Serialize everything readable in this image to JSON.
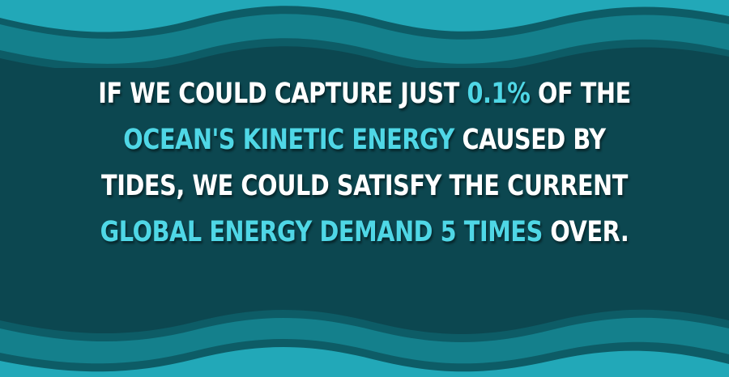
{
  "colors": {
    "background": "#0c4750",
    "wave_dark": "#0d5c66",
    "wave_mid": "#14808c",
    "wave_light": "#22a8b8",
    "text": "#ffffff",
    "highlight": "#4fd7e6"
  },
  "headline": {
    "segments": [
      {
        "text": "If we could capture just ",
        "highlight": false
      },
      {
        "text": "0.1%",
        "highlight": true
      },
      {
        "text": " of the ",
        "highlight": false
      },
      {
        "text": "ocean's kinetic energy",
        "highlight": true
      },
      {
        "text": " caused by tides, we could satisfy the current ",
        "highlight": false
      },
      {
        "text": "global energy demand 5 times",
        "highlight": true
      },
      {
        "text": " over.",
        "highlight": false
      }
    ]
  }
}
